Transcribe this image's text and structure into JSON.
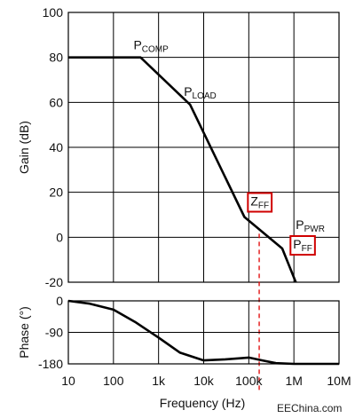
{
  "watermark": "EEChina.com",
  "chart_data": [
    {
      "type": "line",
      "panel": "gain",
      "xscale": "log",
      "xlim": [
        10,
        10000000
      ],
      "ylim": [
        -20,
        100
      ],
      "grid": true,
      "xlabel": "Frequency (Hz)",
      "ylabel": "Gain (dB)",
      "xticks": [
        {
          "value": 10,
          "label": "10"
        },
        {
          "value": 100,
          "label": "100"
        },
        {
          "value": 1000,
          "label": "1k"
        },
        {
          "value": 10000,
          "label": "10k"
        },
        {
          "value": 100000,
          "label": "100k"
        },
        {
          "value": 1000000,
          "label": "1M"
        },
        {
          "value": 10000000,
          "label": "10M"
        }
      ],
      "yticks": [
        {
          "value": 100,
          "label": "100"
        },
        {
          "value": 80,
          "label": "80"
        },
        {
          "value": 60,
          "label": "60"
        },
        {
          "value": 40,
          "label": "40"
        },
        {
          "value": 20,
          "label": "20"
        },
        {
          "value": 0,
          "label": "0"
        },
        {
          "value": -20,
          "label": "-20"
        }
      ],
      "series": [
        {
          "color": "#000000",
          "x": [
            10,
            400,
            5000,
            80000,
            550000,
            1100000
          ],
          "y": [
            80,
            80,
            59,
            9,
            -5,
            -20
          ]
        }
      ],
      "reference_line": {
        "x": 170000,
        "color": "#e00000",
        "style": "dashed"
      },
      "annotations": [
        {
          "main": "P",
          "sub": "COMP",
          "x": 400,
          "y": 80,
          "boxed": false
        },
        {
          "main": "P",
          "sub": "LOAD",
          "x": 5000,
          "y": 59,
          "boxed": false
        },
        {
          "main": "Z",
          "sub": "FF",
          "x": 100000,
          "y": 9,
          "boxed": true,
          "box_color": "#d00000"
        },
        {
          "main": "P",
          "sub": "PWR",
          "x": 700000,
          "y": -5,
          "boxed": false
        },
        {
          "main": "P",
          "sub": "FF",
          "x": 700000,
          "y": -5,
          "boxed": true,
          "box_color": "#d00000"
        }
      ]
    },
    {
      "type": "line",
      "panel": "phase",
      "xscale": "log",
      "xlim": [
        10,
        10000000
      ],
      "ylim": [
        -180,
        0
      ],
      "grid": true,
      "xlabel": "Frequency (Hz)",
      "ylabel": "Phase (°)",
      "yticks": [
        {
          "value": 0,
          "label": "0"
        },
        {
          "value": -90,
          "label": "-90"
        },
        {
          "value": -180,
          "label": "-180"
        }
      ],
      "series": [
        {
          "color": "#000000",
          "x": [
            10,
            30,
            100,
            300,
            1000,
            3000,
            10000,
            30000,
            100000,
            200000,
            400000,
            1000000,
            3000000,
            10000000
          ],
          "y": [
            0,
            -8,
            -25,
            -60,
            -105,
            -148,
            -170,
            -167,
            -162,
            -170,
            -178,
            -180,
            -180,
            -180
          ]
        }
      ]
    }
  ]
}
